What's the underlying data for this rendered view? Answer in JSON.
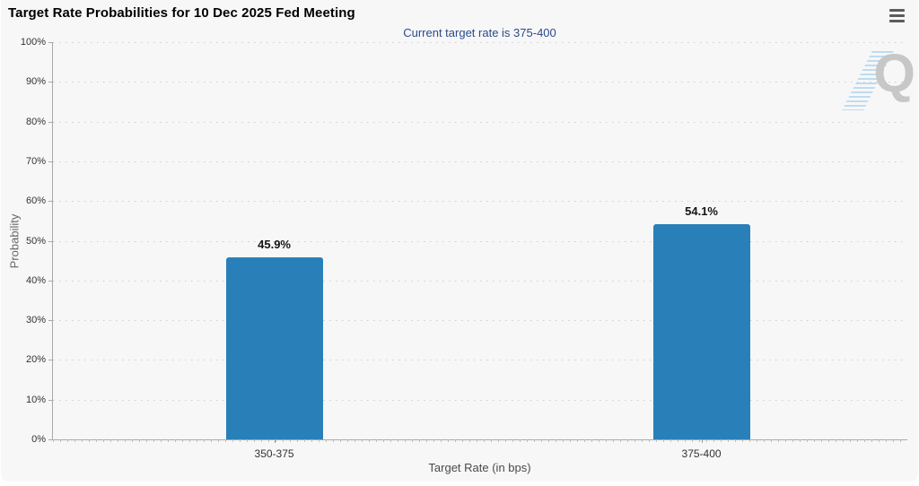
{
  "chart_data": {
    "type": "bar",
    "title": "Target Rate Probabilities for 10 Dec 2025 Fed Meeting",
    "subtitle": "Current target rate is 375-400",
    "categories": [
      "350-375",
      "375-400"
    ],
    "values": [
      45.9,
      54.1
    ],
    "value_labels": [
      "45.9%",
      "54.1%"
    ],
    "xlabel": "Target Rate (in bps)",
    "ylabel": "Probability",
    "ylim": [
      0,
      100
    ],
    "ytick_step": 10,
    "yticks": [
      "0%",
      "10%",
      "20%",
      "30%",
      "40%",
      "50%",
      "60%",
      "70%",
      "80%",
      "90%",
      "100%"
    ],
    "grid": "dotted horizontal gridlines, grid on",
    "legend": "none",
    "bar_color": "#2980b9",
    "current_target_rate": "375-400"
  },
  "icons": {
    "menu": "hamburger-icon",
    "watermark": "quikstrike-q-logo"
  },
  "branding": {
    "watermark_letter": "Q"
  },
  "colors": {
    "panel_background": "#f7f7f7",
    "bar": "#2980b9",
    "subtitle_text": "#2c4a8c",
    "title_text": "#000000",
    "axis_line": "#a8a8a8",
    "gridline": "#cecece",
    "tick_text": "#333333"
  }
}
